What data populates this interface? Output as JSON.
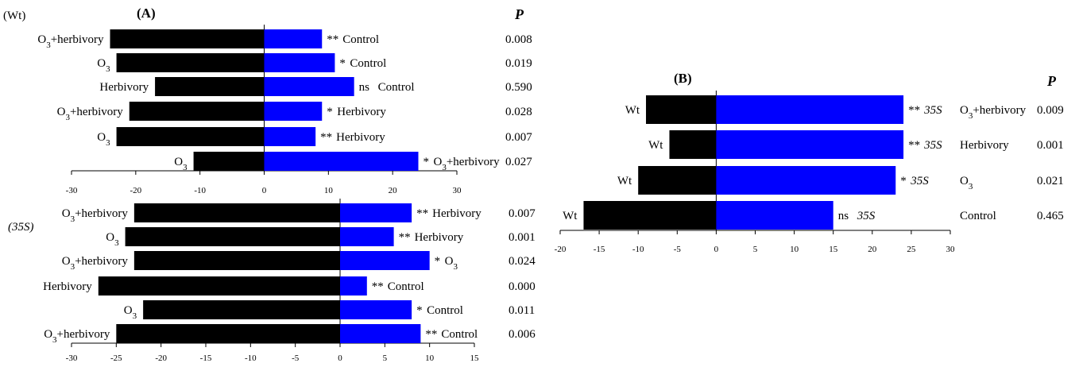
{
  "colors": {
    "left_bar": "#000000",
    "right_bar": "#0000ff"
  },
  "labels": {
    "panel_a": "(A)",
    "panel_b": "(B)",
    "wt_group": "(Wt)",
    "s35_group": "(35S)",
    "p_header": "P"
  },
  "chart_data": [
    {
      "type": "bar",
      "orientation": "horizontal-diverging",
      "panel": "(A)",
      "group": "(Wt)",
      "xlim": [
        -30,
        30
      ],
      "xticks": [
        "-30",
        "-20",
        "-10",
        "0",
        "10",
        "20",
        "30"
      ],
      "rows": [
        {
          "left_label": "O₃+herbivory",
          "left_value": -24,
          "right_value": 9,
          "sig": "**",
          "right_label": "Control",
          "p": "0.008"
        },
        {
          "left_label": "O₃",
          "left_value": -23,
          "right_value": 11,
          "sig": "*",
          "right_label": "Control",
          "p": "0.019"
        },
        {
          "left_label": "Herbivory",
          "left_value": -17,
          "right_value": 14,
          "sig": "ns",
          "right_label": "Control",
          "p": "0.590"
        },
        {
          "left_label": "O₃+herbivory",
          "left_value": -21,
          "right_value": 9,
          "sig": "*",
          "right_label": "Herbivory",
          "p": "0.028"
        },
        {
          "left_label": "O₃",
          "left_value": -23,
          "right_value": 8,
          "sig": "**",
          "right_label": "Herbivory",
          "p": "0.007"
        },
        {
          "left_label": "O₃",
          "left_value": -11,
          "right_value": 24,
          "sig": "*",
          "right_label": "O₃+herbivory",
          "p": "0.027"
        }
      ]
    },
    {
      "type": "bar",
      "orientation": "horizontal-diverging",
      "panel": "(A)",
      "group": "(35S)",
      "xlim": [
        -30,
        15
      ],
      "xticks": [
        "-30",
        "-25",
        "-20",
        "-15",
        "-10",
        "-5",
        "0",
        "5",
        "10",
        "15"
      ],
      "rows": [
        {
          "left_label": "O₃+herbivory",
          "left_value": -23,
          "right_value": 8,
          "sig": "**",
          "right_label": "Herbivory",
          "p": "0.007"
        },
        {
          "left_label": "O₃",
          "left_value": -24,
          "right_value": 6,
          "sig": "**",
          "right_label": "Herbivory",
          "p": "0.001"
        },
        {
          "left_label": "O₃+herbivory",
          "left_value": -23,
          "right_value": 10,
          "sig": "*",
          "right_label": "O₃",
          "p": "0.024"
        },
        {
          "left_label": "Herbivory",
          "left_value": -27,
          "right_value": 3,
          "sig": "**",
          "right_label": "Control",
          "p": "0.000"
        },
        {
          "left_label": "O₃",
          "left_value": -22,
          "right_value": 8,
          "sig": "*",
          "right_label": "Control",
          "p": "0.011"
        },
        {
          "left_label": "O₃+herbivory",
          "left_value": -25,
          "right_value": 9,
          "sig": "**",
          "right_label": "Control",
          "p": "0.006"
        }
      ]
    },
    {
      "type": "bar",
      "orientation": "horizontal-diverging",
      "panel": "(B)",
      "xlim": [
        -20,
        30
      ],
      "xticks": [
        "-20",
        "-15",
        "-10",
        "-5",
        "0",
        "5",
        "10",
        "15",
        "20",
        "25",
        "30"
      ],
      "rows": [
        {
          "left_label": "Wt",
          "left_value": -9,
          "right_value": 24,
          "sig": "**",
          "right_label": "35S",
          "treatment": "O₃+herbivory",
          "p": "0.009"
        },
        {
          "left_label": "Wt",
          "left_value": -6,
          "right_value": 24,
          "sig": "**",
          "right_label": "35S",
          "treatment": "Herbivory",
          "p": "0.001"
        },
        {
          "left_label": "Wt",
          "left_value": -10,
          "right_value": 23,
          "sig": "*",
          "right_label": "35S",
          "treatment": "O₃",
          "p": "0.021"
        },
        {
          "left_label": "Wt",
          "left_value": -17,
          "right_value": 15,
          "sig": "ns",
          "right_label": "35S",
          "treatment": "Control",
          "p": "0.465"
        }
      ]
    }
  ]
}
